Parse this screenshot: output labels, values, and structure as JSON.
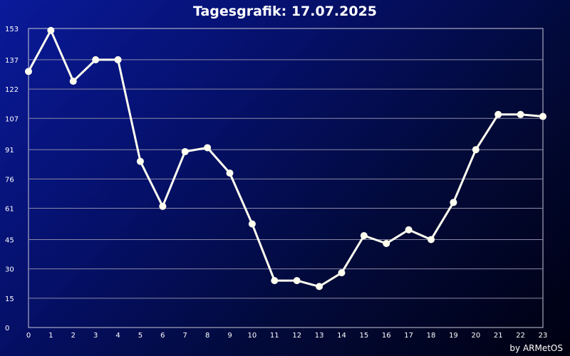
{
  "chart_data": {
    "type": "line",
    "title": "Tagesgrafik: 17.07.2025",
    "xlabel": "",
    "ylabel": "",
    "x": [
      0,
      1,
      2,
      3,
      4,
      5,
      6,
      7,
      8,
      9,
      10,
      11,
      12,
      13,
      14,
      15,
      16,
      17,
      18,
      19,
      20,
      21,
      22,
      23
    ],
    "series": [
      {
        "values": [
          131,
          152,
          126,
          137,
          137,
          85,
          62,
          90,
          92,
          79,
          53,
          24,
          24,
          21,
          28,
          47,
          43,
          50,
          45,
          64,
          91,
          109,
          109,
          108
        ]
      }
    ],
    "yticks": [
      0,
      15,
      30,
      45,
      61,
      76,
      91,
      107,
      122,
      137,
      153
    ],
    "ylim": [
      0,
      153
    ],
    "xlim": [
      0,
      23
    ],
    "grid": true,
    "line_color": "#fffff0"
  },
  "credit": "by ARMetOS"
}
